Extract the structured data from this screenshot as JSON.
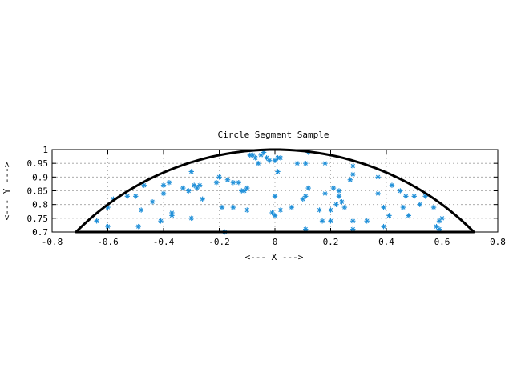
{
  "chart_data": {
    "type": "scatter",
    "title": "Circle Segment Sample",
    "xlabel": "<--- X --->",
    "ylabel": "<--- Y --->",
    "xlim": [
      -0.8,
      0.8
    ],
    "ylim": [
      0.7,
      1.0
    ],
    "xticks": [
      -0.8,
      -0.6,
      -0.4,
      -0.2,
      0,
      0.2,
      0.4,
      0.6,
      0.8
    ],
    "xtick_labels": [
      "-0.8",
      "-0.6",
      "-0.4",
      "-0.2",
      "0",
      "0.2",
      "0.4",
      "0.6",
      "0.8"
    ],
    "yticks": [
      0.7,
      0.75,
      0.8,
      0.85,
      0.9,
      0.95,
      1.0
    ],
    "ytick_labels": [
      "0.7",
      "0.75",
      "0.8",
      "0.85",
      "0.9",
      "0.95",
      "1"
    ],
    "grid": true,
    "boundary": {
      "shape": "circle segment",
      "radius": 1.0,
      "chord_y": 0.7,
      "color": "#000000"
    },
    "series": [
      {
        "marker": "asterisk",
        "color": "#1f8fd8",
        "points": [
          [
            -0.64,
            0.74
          ],
          [
            -0.6,
            0.72
          ],
          [
            -0.6,
            0.79
          ],
          [
            -0.58,
            0.82
          ],
          [
            -0.53,
            0.83
          ],
          [
            -0.5,
            0.83
          ],
          [
            -0.49,
            0.72
          ],
          [
            -0.48,
            0.78
          ],
          [
            -0.47,
            0.87
          ],
          [
            -0.44,
            0.81
          ],
          [
            -0.41,
            0.74
          ],
          [
            -0.4,
            0.84
          ],
          [
            -0.4,
            0.87
          ],
          [
            -0.38,
            0.88
          ],
          [
            -0.37,
            0.77
          ],
          [
            -0.37,
            0.76
          ],
          [
            -0.33,
            0.86
          ],
          [
            -0.31,
            0.85
          ],
          [
            -0.3,
            0.75
          ],
          [
            -0.3,
            0.92
          ],
          [
            -0.29,
            0.87
          ],
          [
            -0.28,
            0.86
          ],
          [
            -0.27,
            0.87
          ],
          [
            -0.26,
            0.82
          ],
          [
            -0.21,
            0.88
          ],
          [
            -0.2,
            0.9
          ],
          [
            -0.19,
            0.79
          ],
          [
            -0.18,
            0.7
          ],
          [
            -0.17,
            0.89
          ],
          [
            -0.15,
            0.79
          ],
          [
            -0.15,
            0.88
          ],
          [
            -0.13,
            0.88
          ],
          [
            -0.12,
            0.85
          ],
          [
            -0.11,
            0.85
          ],
          [
            -0.1,
            0.86
          ],
          [
            -0.1,
            0.78
          ],
          [
            -0.09,
            0.98
          ],
          [
            -0.08,
            0.98
          ],
          [
            -0.07,
            0.97
          ],
          [
            -0.06,
            0.95
          ],
          [
            -0.05,
            0.98
          ],
          [
            -0.04,
            0.99
          ],
          [
            -0.03,
            0.97
          ],
          [
            -0.02,
            0.96
          ],
          [
            -0.01,
            0.77
          ],
          [
            0.0,
            0.76
          ],
          [
            0.0,
            0.83
          ],
          [
            0.0,
            0.96
          ],
          [
            0.01,
            0.97
          ],
          [
            0.01,
            0.92
          ],
          [
            0.02,
            0.97
          ],
          [
            0.02,
            0.78
          ],
          [
            0.06,
            0.79
          ],
          [
            0.08,
            0.95
          ],
          [
            0.1,
            0.82
          ],
          [
            0.11,
            0.83
          ],
          [
            0.11,
            0.95
          ],
          [
            0.11,
            0.71
          ],
          [
            0.12,
            0.99
          ],
          [
            0.12,
            0.86
          ],
          [
            0.16,
            0.78
          ],
          [
            0.17,
            0.74
          ],
          [
            0.18,
            0.84
          ],
          [
            0.18,
            0.95
          ],
          [
            0.2,
            0.74
          ],
          [
            0.2,
            0.78
          ],
          [
            0.21,
            0.86
          ],
          [
            0.22,
            0.8
          ],
          [
            0.23,
            0.83
          ],
          [
            0.23,
            0.85
          ],
          [
            0.24,
            0.81
          ],
          [
            0.25,
            0.79
          ],
          [
            0.27,
            0.89
          ],
          [
            0.28,
            0.91
          ],
          [
            0.28,
            0.94
          ],
          [
            0.28,
            0.74
          ],
          [
            0.28,
            0.71
          ],
          [
            0.33,
            0.74
          ],
          [
            0.37,
            0.84
          ],
          [
            0.37,
            0.9
          ],
          [
            0.39,
            0.72
          ],
          [
            0.39,
            0.79
          ],
          [
            0.41,
            0.76
          ],
          [
            0.42,
            0.87
          ],
          [
            0.45,
            0.85
          ],
          [
            0.46,
            0.79
          ],
          [
            0.47,
            0.83
          ],
          [
            0.48,
            0.76
          ],
          [
            0.5,
            0.83
          ],
          [
            0.52,
            0.8
          ],
          [
            0.54,
            0.83
          ],
          [
            0.57,
            0.79
          ],
          [
            0.58,
            0.72
          ],
          [
            0.59,
            0.74
          ],
          [
            0.59,
            0.71
          ],
          [
            0.6,
            0.75
          ]
        ]
      }
    ]
  }
}
